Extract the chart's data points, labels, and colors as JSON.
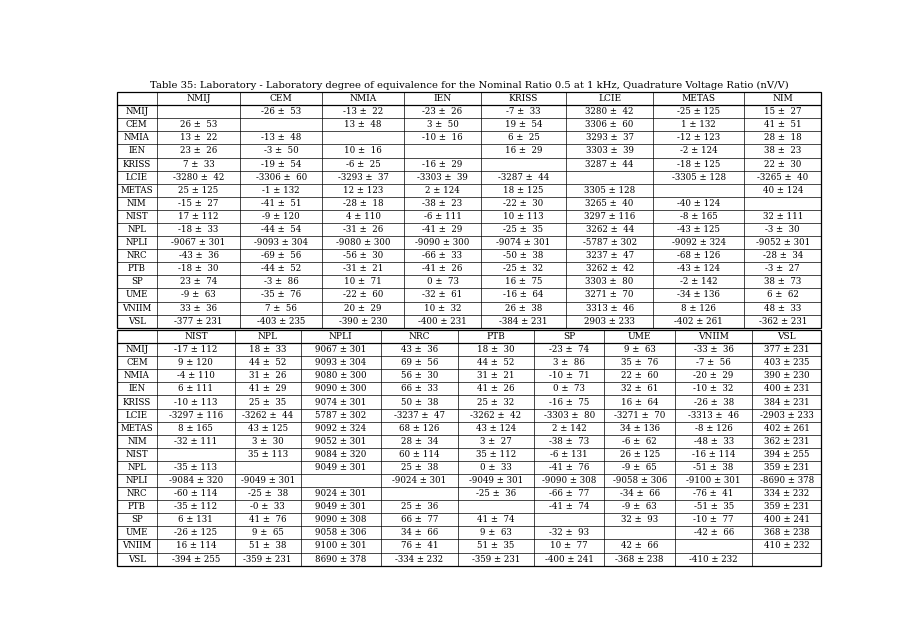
{
  "title": "Table 35: Laboratory - Laboratory degree of equivalence for the Nominal Ratio 0.5 at 1 kHz, Quadrature Voltage Ratio (nV/V)",
  "top_col_headers": [
    "",
    "NMIJ",
    "CEM",
    "NMIA",
    "IEN",
    "KRISS",
    "LCIE",
    "METAS",
    "NIM"
  ],
  "bottom_col_headers": [
    "",
    "NIST",
    "NPL",
    "NPLI",
    "NRC",
    "PTB",
    "SP",
    "UME",
    "VNIIM",
    "VSL"
  ],
  "row_labels": [
    "NMIJ",
    "CEM",
    "NMIA",
    "IEN",
    "KRISS",
    "LCIE",
    "METAS",
    "NIM",
    "NIST",
    "NPL",
    "NPLI",
    "NRC",
    "PTB",
    "SP",
    "UME",
    "VNIIM",
    "VSL"
  ],
  "top_data": [
    [
      "",
      "-26 ±  53",
      "-13 ±  22",
      "-23 ±  26",
      "-7 ±  33",
      "3280 ±  42",
      "-25 ± 125",
      "15 ±  27"
    ],
    [
      "26 ±  53",
      "",
      "13 ±  48",
      "3 ±  50",
      "19 ±  54",
      "3306 ±  60",
      "1 ± 132",
      "41 ±  51"
    ],
    [
      "13 ±  22",
      "-13 ±  48",
      "",
      "-10 ±  16",
      "6 ±  25",
      "3293 ±  37",
      "-12 ± 123",
      "28 ±  18"
    ],
    [
      "23 ±  26",
      "-3 ±  50",
      "10 ±  16",
      "",
      "16 ±  29",
      "3303 ±  39",
      "-2 ± 124",
      "38 ±  23"
    ],
    [
      "7 ±  33",
      "-19 ±  54",
      "-6 ±  25",
      "-16 ±  29",
      "",
      "3287 ±  44",
      "-18 ± 125",
      "22 ±  30"
    ],
    [
      "-3280 ±  42",
      "-3306 ±  60",
      "-3293 ±  37",
      "-3303 ±  39",
      "-3287 ±  44",
      "",
      "-3305 ± 128",
      "-3265 ±  40"
    ],
    [
      "25 ± 125",
      "-1 ± 132",
      "12 ± 123",
      "2 ± 124",
      "18 ± 125",
      "3305 ± 128",
      "",
      "40 ± 124"
    ],
    [
      "-15 ±  27",
      "-41 ±  51",
      "-28 ±  18",
      "-38 ±  23",
      "-22 ±  30",
      "3265 ±  40",
      "-40 ± 124",
      ""
    ],
    [
      "17 ± 112",
      "-9 ± 120",
      "4 ± 110",
      "-6 ± 111",
      "10 ± 113",
      "3297 ± 116",
      "-8 ± 165",
      "32 ± 111"
    ],
    [
      "-18 ±  33",
      "-44 ±  54",
      "-31 ±  26",
      "-41 ±  29",
      "-25 ±  35",
      "3262 ±  44",
      "-43 ± 125",
      "-3 ±  30"
    ],
    [
      "-9067 ± 301",
      "-9093 ± 304",
      "-9080 ± 300",
      "-9090 ± 300",
      "-9074 ± 301",
      "-5787 ± 302",
      "-9092 ± 324",
      "-9052 ± 301"
    ],
    [
      "-43 ±  36",
      "-69 ±  56",
      "-56 ±  30",
      "-66 ±  33",
      "-50 ±  38",
      "3237 ±  47",
      "-68 ± 126",
      "-28 ±  34"
    ],
    [
      "-18 ±  30",
      "-44 ±  52",
      "-31 ±  21",
      "-41 ±  26",
      "-25 ±  32",
      "3262 ±  42",
      "-43 ± 124",
      "-3 ±  27"
    ],
    [
      "23 ±  74",
      "-3 ±  86",
      "10 ±  71",
      "0 ±  73",
      "16 ±  75",
      "3303 ±  80",
      "-2 ± 142",
      "38 ±  73"
    ],
    [
      "-9 ±  63",
      "-35 ±  76",
      "-22 ±  60",
      "-32 ±  61",
      "-16 ±  64",
      "3271 ±  70",
      "-34 ± 136",
      "6 ±  62"
    ],
    [
      "33 ±  36",
      "7 ±  56",
      "20 ±  29",
      "10 ±  32",
      "26 ±  38",
      "3313 ±  46",
      "8 ± 126",
      "48 ±  33"
    ],
    [
      "-377 ± 231",
      "-403 ± 235",
      "-390 ± 230",
      "-400 ± 231",
      "-384 ± 231",
      "2903 ± 233",
      "-402 ± 261",
      "-362 ± 231"
    ]
  ],
  "bottom_data": [
    [
      "-17 ± 112",
      "18 ±  33",
      "9067 ± 301",
      "43 ±  36",
      "18 ±  30",
      "-23 ±  74",
      "9 ±  63",
      "-33 ±  36",
      "377 ± 231"
    ],
    [
      "9 ± 120",
      "44 ±  52",
      "9093 ± 304",
      "69 ±  56",
      "44 ±  52",
      "3 ±  86",
      "35 ±  76",
      "-7 ±  56",
      "403 ± 235"
    ],
    [
      "-4 ± 110",
      "31 ±  26",
      "9080 ± 300",
      "56 ±  30",
      "31 ±  21",
      "-10 ±  71",
      "22 ±  60",
      "-20 ±  29",
      "390 ± 230"
    ],
    [
      "6 ± 111",
      "41 ±  29",
      "9090 ± 300",
      "66 ±  33",
      "41 ±  26",
      "0 ±  73",
      "32 ±  61",
      "-10 ±  32",
      "400 ± 231"
    ],
    [
      "-10 ± 113",
      "25 ±  35",
      "9074 ± 301",
      "50 ±  38",
      "25 ±  32",
      "-16 ±  75",
      "16 ±  64",
      "-26 ±  38",
      "384 ± 231"
    ],
    [
      "-3297 ± 116",
      "-3262 ±  44",
      "5787 ± 302",
      "-3237 ±  47",
      "-3262 ±  42",
      "-3303 ±  80",
      "-3271 ±  70",
      "-3313 ±  46",
      "-2903 ± 233"
    ],
    [
      "8 ± 165",
      "43 ± 125",
      "9092 ± 324",
      "68 ± 126",
      "43 ± 124",
      "2 ± 142",
      "34 ± 136",
      "-8 ± 126",
      "402 ± 261"
    ],
    [
      "-32 ± 111",
      "3 ±  30",
      "9052 ± 301",
      "28 ±  34",
      "3 ±  27",
      "-38 ±  73",
      "-6 ±  62",
      "-48 ±  33",
      "362 ± 231"
    ],
    [
      "",
      "35 ± 113",
      "9084 ± 320",
      "60 ± 114",
      "35 ± 112",
      "-6 ± 131",
      "26 ± 125",
      "-16 ± 114",
      "394 ± 255"
    ],
    [
      "-35 ± 113",
      "",
      "9049 ± 301",
      "25 ±  38",
      "0 ±  33",
      "-41 ±  76",
      "-9 ±  65",
      "-51 ±  38",
      "359 ± 231"
    ],
    [
      "-9084 ± 320",
      "-9049 ± 301",
      "",
      "-9024 ± 301",
      "-9049 ± 301",
      "-9090 ± 308",
      "-9058 ± 306",
      "-9100 ± 301",
      "-8690 ± 378"
    ],
    [
      "-60 ± 114",
      "-25 ±  38",
      "9024 ± 301",
      "",
      "-25 ±  36",
      "-66 ±  77",
      "-34 ±  66",
      "-76 ±  41",
      "334 ± 232"
    ],
    [
      "-35 ± 112",
      "-0 ±  33",
      "9049 ± 301",
      "25 ±  36",
      "",
      "-41 ±  74",
      "-9 ±  63",
      "-51 ±  35",
      "359 ± 231"
    ],
    [
      "6 ± 131",
      "41 ±  76",
      "9090 ± 308",
      "66 ±  77",
      "41 ±  74",
      "",
      "32 ±  93",
      "-10 ±  77",
      "400 ± 241"
    ],
    [
      "-26 ± 125",
      "9 ±  65",
      "9058 ± 306",
      "34 ±  66",
      "9 ±  63",
      "-32 ±  93",
      "",
      "-42 ±  66",
      "368 ± 238"
    ],
    [
      "16 ± 114",
      "51 ±  38",
      "9100 ± 301",
      "76 ±  41",
      "51 ±  35",
      "10 ±  77",
      "42 ±  66",
      "",
      "410 ± 232"
    ],
    [
      "-394 ± 255",
      "-359 ± 231",
      "8690 ± 378",
      "-334 ± 232",
      "-359 ± 231",
      "-400 ± 241",
      "-368 ± 238",
      "-410 ± 232",
      ""
    ]
  ],
  "figsize": [
    9.15,
    6.39
  ],
  "dpi": 100,
  "title_fontsize": 7.2,
  "cell_fontsize": 6.2,
  "header_fontsize": 6.5
}
